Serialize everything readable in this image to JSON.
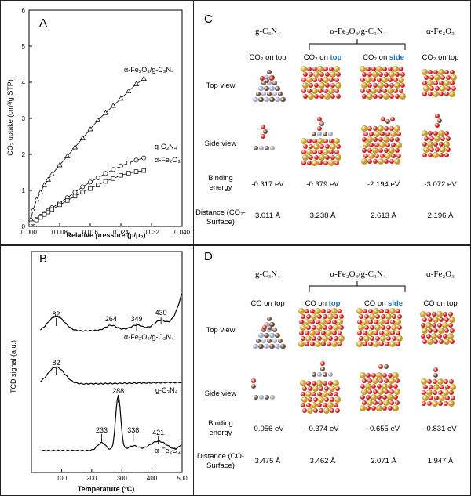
{
  "panelA": {
    "letter": "A",
    "chart_data": {
      "type": "scatter",
      "xlabel": "Relative pressure (p/p₀)",
      "ylabel": "CO₂ uptake (cm³/g STP)",
      "xlim": [
        0.0,
        0.04
      ],
      "ylim": [
        0,
        6
      ],
      "xticks": [
        "0.000",
        "0.008",
        "0.016",
        "0.024",
        "0.032",
        "0.040"
      ],
      "yticks": [
        "0",
        "1",
        "2",
        "3",
        "4",
        "5",
        "6"
      ],
      "series": [
        {
          "name": "α-Fe₂O₃/g-C₃N₄",
          "marker": "triangle",
          "x": [
            0.0005,
            0.001,
            0.002,
            0.003,
            0.004,
            0.005,
            0.006,
            0.008,
            0.01,
            0.012,
            0.014,
            0.016,
            0.018,
            0.02,
            0.022,
            0.024,
            0.026,
            0.028,
            0.03
          ],
          "y": [
            0.2,
            0.45,
            0.75,
            0.95,
            1.15,
            1.3,
            1.45,
            1.7,
            1.95,
            2.2,
            2.45,
            2.7,
            2.95,
            3.15,
            3.35,
            3.55,
            3.75,
            3.95,
            4.1
          ]
        },
        {
          "name": "g-C₃N₄",
          "marker": "circle",
          "x": [
            0.0005,
            0.001,
            0.002,
            0.003,
            0.004,
            0.005,
            0.006,
            0.008,
            0.01,
            0.012,
            0.014,
            0.016,
            0.018,
            0.02,
            0.022,
            0.024,
            0.026,
            0.028,
            0.03
          ],
          "y": [
            0.05,
            0.1,
            0.2,
            0.28,
            0.36,
            0.44,
            0.52,
            0.65,
            0.8,
            0.95,
            1.1,
            1.23,
            1.35,
            1.47,
            1.58,
            1.68,
            1.76,
            1.84,
            1.9
          ]
        },
        {
          "name": "α-Fe₂O₃",
          "marker": "square",
          "x": [
            0.0005,
            0.001,
            0.002,
            0.003,
            0.004,
            0.005,
            0.006,
            0.008,
            0.01,
            0.012,
            0.014,
            0.016,
            0.018,
            0.02,
            0.022,
            0.024,
            0.026,
            0.028,
            0.03
          ],
          "y": [
            0.05,
            0.1,
            0.18,
            0.25,
            0.33,
            0.4,
            0.47,
            0.6,
            0.72,
            0.84,
            0.95,
            1.05,
            1.15,
            1.25,
            1.33,
            1.42,
            1.48,
            1.52,
            1.55
          ]
        }
      ]
    }
  },
  "panelB": {
    "letter": "B",
    "chart_data": {
      "type": "line",
      "xlabel": "Temperature (°C)",
      "ylabel": "TCD signal (a.u.)",
      "xlim": [
        0,
        500
      ],
      "xticks": [
        "100",
        "200",
        "300",
        "400",
        "500"
      ],
      "series": [
        {
          "name": "α-Fe₂O₃/g-C₃N₄",
          "peaks": [
            {
              "x": 82,
              "label": "82"
            },
            {
              "x": 264,
              "label": "264"
            },
            {
              "x": 349,
              "label": "349"
            },
            {
              "x": 430,
              "label": "430"
            }
          ]
        },
        {
          "name": "g-C₃N₄",
          "peaks": [
            {
              "x": 82,
              "label": "82"
            }
          ]
        },
        {
          "name": "α-Fe₂O₃",
          "peaks": [
            {
              "x": 233,
              "label": "233"
            },
            {
              "x": 288,
              "label": "288"
            },
            {
              "x": 338,
              "label": "338"
            },
            {
              "x": 421,
              "label": "421"
            }
          ]
        }
      ]
    }
  },
  "panelC": {
    "letter": "C",
    "headers": [
      "g-C₃N₄",
      "α-Fe₂O₃/g-C₃N₄",
      "α-Fe₂O₃"
    ],
    "sub": {
      "c1": "CO₂ on top",
      "c2a": "CO₂ on ",
      "c2a_hl": "top",
      "c2b": "CO₂ on ",
      "c2b_hl": "side",
      "c3": "CO₂ on top"
    },
    "rows": {
      "top": "Top view",
      "side": "Side view",
      "binding": "Binding energy",
      "distance": "Distance (CO₂-Surface)"
    },
    "binding": [
      "-0.317 eV",
      "-0.379 eV",
      "-2.194 eV",
      "-3.072 eV"
    ],
    "distance": [
      "3.011 Å",
      "3.238 Å",
      "2.613 Å",
      "2.196 Å"
    ]
  },
  "panelD": {
    "letter": "D",
    "headers": [
      "g-C₃N₄",
      "α-Fe₂O₃/g-C₃N₄",
      "α-Fe₂O₃"
    ],
    "sub": {
      "c1": "CO on top",
      "c2a": "CO on ",
      "c2a_hl": "top",
      "c2b": "CO on ",
      "c2b_hl": "side",
      "c3": "CO on top"
    },
    "rows": {
      "top": "Top view",
      "side": "Side view",
      "binding": "Binding energy",
      "distance": "Distance (CO-Surface)"
    },
    "binding": [
      "-0.056 eV",
      "-0.374 eV",
      "-0.655 eV",
      "-0.831 eV"
    ],
    "distance": [
      "3.475 Å",
      "3.462 Å",
      "2.071 Å",
      "1.947 Å"
    ]
  },
  "colors": {
    "Fe": "#c49a20",
    "O": "#d0201a",
    "C": "#6b4a3a",
    "N": "#9aa3c8",
    "highlight": "#1e6fb5"
  }
}
